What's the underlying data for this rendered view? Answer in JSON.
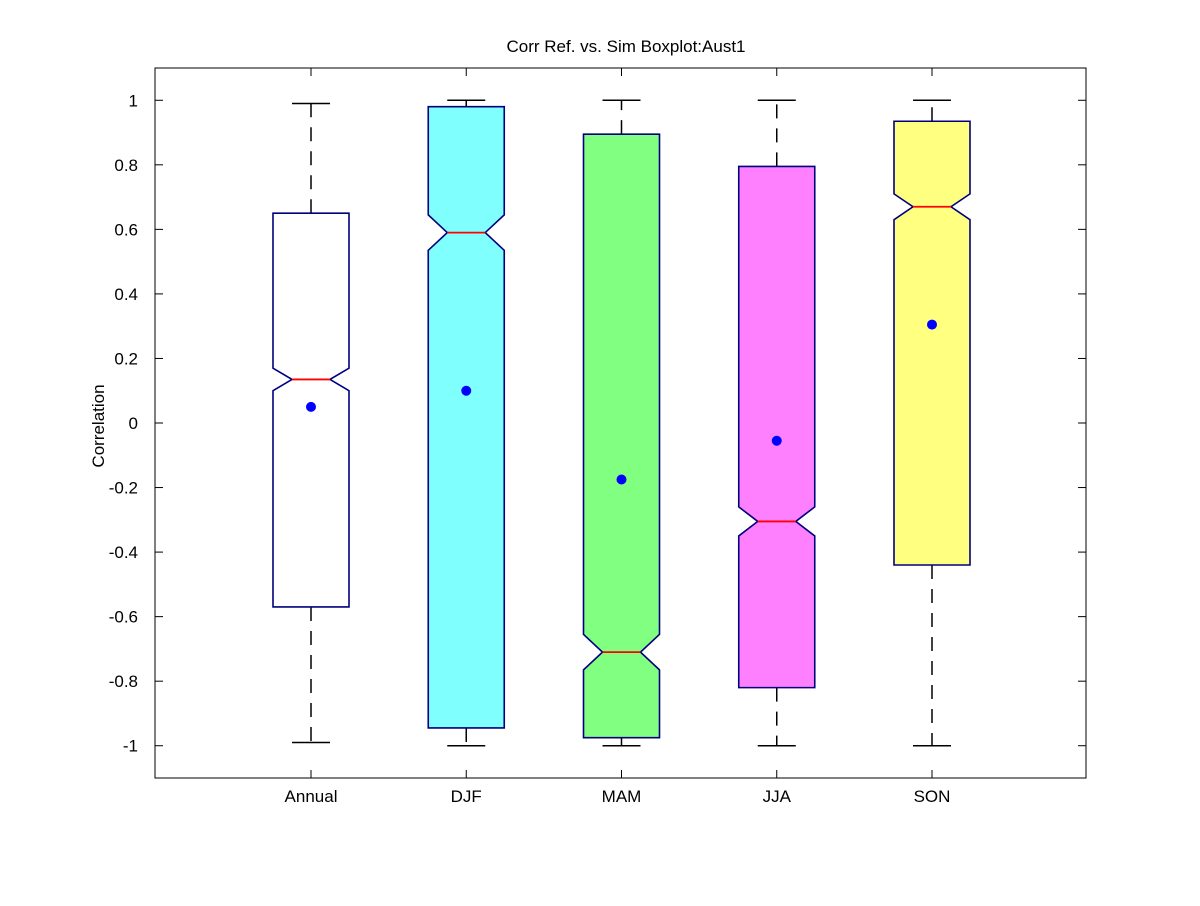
{
  "chart_data": {
    "type": "boxplot",
    "title": "Corr Ref. vs. Sim Boxplot:Aust1",
    "xlabel": "",
    "ylabel": "Correlation",
    "categories": [
      "Annual",
      "DJF",
      "MAM",
      "JJA",
      "SON"
    ],
    "ylim": [
      -1.1,
      1.1
    ],
    "yticks": [
      -1,
      -0.8,
      -0.6,
      -0.4,
      -0.2,
      0,
      0.2,
      0.4,
      0.6,
      0.8,
      1
    ],
    "ytick_labels": [
      "-1",
      "-0.8",
      "-0.6",
      "-0.4",
      "-0.2",
      "0",
      "0.2",
      "0.4",
      "0.6",
      "0.8",
      "1"
    ],
    "notched": true,
    "grid": false,
    "boxes": [
      {
        "category": "Annual",
        "whisker_low": -0.99,
        "q1": -0.57,
        "notch_low": 0.1,
        "median": 0.135,
        "notch_high": 0.17,
        "q3": 0.65,
        "whisker_high": 0.99,
        "mean": 0.05,
        "fill": "#ffffff"
      },
      {
        "category": "DJF",
        "whisker_low": -1.0,
        "q1": -0.945,
        "notch_low": 0.535,
        "median": 0.59,
        "notch_high": 0.645,
        "q3": 0.98,
        "whisker_high": 1.0,
        "mean": 0.1,
        "fill": "#80ffff"
      },
      {
        "category": "MAM",
        "whisker_low": -1.0,
        "q1": -0.975,
        "notch_low": -0.765,
        "median": -0.71,
        "notch_high": -0.655,
        "q3": 0.895,
        "whisker_high": 1.0,
        "mean": -0.175,
        "fill": "#80ff80"
      },
      {
        "category": "JJA",
        "whisker_low": -1.0,
        "q1": -0.82,
        "notch_low": -0.35,
        "median": -0.305,
        "notch_high": -0.26,
        "q3": 0.795,
        "whisker_high": 1.0,
        "mean": -0.055,
        "fill": "#ff80ff"
      },
      {
        "category": "SON",
        "whisker_low": -1.0,
        "q1": -0.44,
        "notch_low": 0.63,
        "median": 0.67,
        "notch_high": 0.71,
        "q3": 0.935,
        "whisker_high": 1.0,
        "mean": 0.305,
        "fill": "#ffff80"
      }
    ],
    "colors": {
      "box_edge": "#00007f",
      "median": "#ff0000",
      "mean_marker": "#0000ff",
      "whisker": "#000000"
    }
  }
}
